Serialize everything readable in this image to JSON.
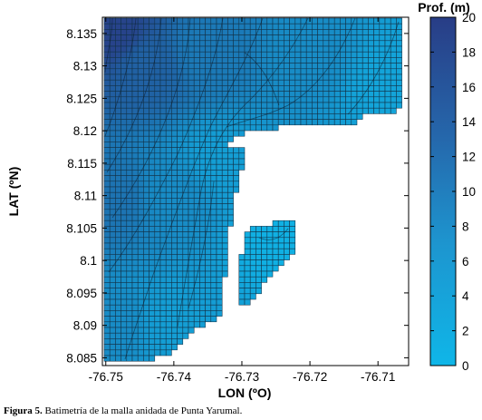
{
  "chart_data": {
    "type": "heatmap",
    "xlabel": "LON (ºO)",
    "ylabel": "LAT (ºN)",
    "xlim": [
      -76.7505,
      -76.7055
    ],
    "ylim": [
      8.0838,
      8.1375
    ],
    "x_ticks": [
      "-76.75",
      "-76.74",
      "-76.73",
      "-76.72",
      "-76.71"
    ],
    "x_tick_values": [
      -76.75,
      -76.74,
      -76.73,
      -76.72,
      -76.71
    ],
    "y_ticks": [
      "8.085",
      "8.09",
      "8.095",
      "8.1",
      "8.105",
      "8.11",
      "8.115",
      "8.12",
      "8.125",
      "8.13",
      "8.135"
    ],
    "y_tick_values": [
      8.085,
      8.09,
      8.095,
      8.1,
      8.105,
      8.11,
      8.115,
      8.12,
      8.125,
      8.13,
      8.135
    ],
    "colorbar": {
      "title": "Prof. (m)",
      "range": [
        0,
        20
      ],
      "ticks": [
        "0",
        "2",
        "4",
        "6",
        "8",
        "10",
        "12",
        "14",
        "16",
        "18",
        "20"
      ],
      "tick_values": [
        0,
        2,
        4,
        6,
        8,
        10,
        12,
        14,
        16,
        18,
        20
      ],
      "color_low": "#0fb6e8",
      "color_high": "#283d86"
    },
    "grid": false,
    "mesh": "nested bathymetry grid with black cell outlines; land and areas outside the mesh left white",
    "depth_samples": [
      {
        "lon": -76.749,
        "lat": 8.135,
        "depth": 19
      },
      {
        "lon": -76.744,
        "lat": 8.13,
        "depth": 14
      },
      {
        "lon": -76.735,
        "lat": 8.132,
        "depth": 10
      },
      {
        "lon": -76.72,
        "lat": 8.131,
        "depth": 7
      },
      {
        "lon": -76.709,
        "lat": 8.127,
        "depth": 3
      },
      {
        "lon": -76.749,
        "lat": 8.11,
        "depth": 11
      },
      {
        "lon": -76.74,
        "lat": 8.11,
        "depth": 7
      },
      {
        "lon": -76.733,
        "lat": 8.115,
        "depth": 4
      },
      {
        "lon": -76.749,
        "lat": 8.09,
        "depth": 7
      },
      {
        "lon": -76.74,
        "lat": 8.09,
        "depth": 4
      },
      {
        "lon": -76.724,
        "lat": 8.104,
        "depth": 1
      }
    ]
  },
  "caption": {
    "label": "Figura 5.",
    "text": "Batimetría de la malla anidada de Punta Yarumal."
  }
}
